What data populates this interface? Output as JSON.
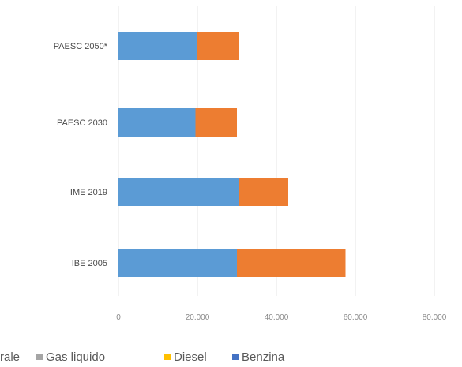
{
  "chart_data": {
    "type": "bar",
    "orientation": "horizontal",
    "stacked": true,
    "categories": [
      "PAESC 2050*",
      "PAESC 2030",
      "IME 2019",
      "IBE 2005"
    ],
    "series": [
      {
        "name": "Benzina",
        "color": "#5b9bd5",
        "values": [
          20000,
          19500,
          30500,
          30000
        ]
      },
      {
        "name": "Diesel",
        "color": "#ed7d31",
        "values": [
          10500,
          10500,
          12500,
          27500
        ]
      },
      {
        "name": "Gas liquido",
        "color": "#a5a5a5",
        "values": [
          0,
          0,
          0,
          0
        ]
      }
    ],
    "xlim": [
      0,
      80000
    ],
    "x_ticks": [
      "0",
      "20.000",
      "40.000",
      "60.000",
      "80.000"
    ],
    "grid": true,
    "legend_position": "bottom",
    "legend": [
      {
        "label": "rale",
        "color": ""
      },
      {
        "label": "Gas liquido",
        "color": "#a5a5a5"
      },
      {
        "label": "Diesel",
        "color": "#ffc000"
      },
      {
        "label": "Benzina",
        "color": "#4472c4"
      }
    ]
  }
}
